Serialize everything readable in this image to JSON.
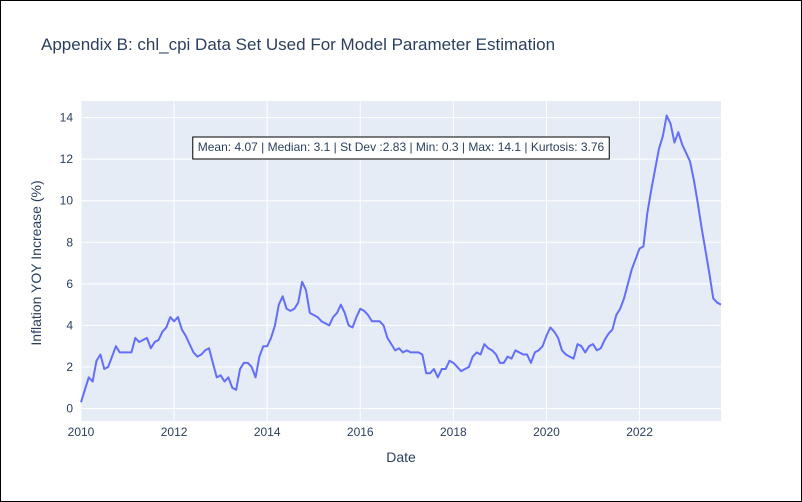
{
  "chart_title": "Appendix B: chl_cpi Data Set Used For Model Parameter Estimation",
  "chart_data": {
    "type": "line",
    "title": "Appendix B: chl_cpi Data Set Used For Model Parameter Estimation",
    "xlabel": "Date",
    "ylabel": "Inflation YOY Increase (%)",
    "xlim": [
      2010.0,
      2023.75
    ],
    "ylim": [
      -0.6,
      14.8
    ],
    "x_ticks": [
      "2010",
      "2012",
      "2014",
      "2016",
      "2018",
      "2020",
      "2022"
    ],
    "y_ticks": [
      "0",
      "2",
      "4",
      "6",
      "8",
      "10",
      "12",
      "14"
    ],
    "annotation": "Mean: 4.07 | Median: 3.1 | St Dev :2.83 | Min: 0.3 | Max: 14.1 | Kurtosis: 3.76",
    "grid": true,
    "line_color": "#636efa",
    "series": [
      {
        "x": [
          2010.0,
          2010.083,
          2010.167,
          2010.25,
          2010.333,
          2010.417,
          2010.5,
          2010.583,
          2010.667,
          2010.75,
          2010.833,
          2010.917,
          2011.0,
          2011.083,
          2011.167,
          2011.25,
          2011.333,
          2011.417,
          2011.5,
          2011.583,
          2011.667,
          2011.75,
          2011.833,
          2011.917,
          2012.0,
          2012.083,
          2012.167,
          2012.25,
          2012.333,
          2012.417,
          2012.5,
          2012.583,
          2012.667,
          2012.75,
          2012.833,
          2012.917,
          2013.0,
          2013.083,
          2013.167,
          2013.25,
          2013.333,
          2013.417,
          2013.5,
          2013.583,
          2013.667,
          2013.75,
          2013.833,
          2013.917,
          2014.0,
          2014.083,
          2014.167,
          2014.25,
          2014.333,
          2014.417,
          2014.5,
          2014.583,
          2014.667,
          2014.75,
          2014.833,
          2014.917,
          2015.0,
          2015.083,
          2015.167,
          2015.25,
          2015.333,
          2015.417,
          2015.5,
          2015.583,
          2015.667,
          2015.75,
          2015.833,
          2015.917,
          2016.0,
          2016.083,
          2016.167,
          2016.25,
          2016.333,
          2016.417,
          2016.5,
          2016.583,
          2016.667,
          2016.75,
          2016.833,
          2016.917,
          2017.0,
          2017.083,
          2017.167,
          2017.25,
          2017.333,
          2017.417,
          2017.5,
          2017.583,
          2017.667,
          2017.75,
          2017.833,
          2017.917,
          2018.0,
          2018.083,
          2018.167,
          2018.25,
          2018.333,
          2018.417,
          2018.5,
          2018.583,
          2018.667,
          2018.75,
          2018.833,
          2018.917,
          2019.0,
          2019.083,
          2019.167,
          2019.25,
          2019.333,
          2019.417,
          2019.5,
          2019.583,
          2019.667,
          2019.75,
          2019.833,
          2019.917,
          2020.0,
          2020.083,
          2020.167,
          2020.25,
          2020.333,
          2020.417,
          2020.5,
          2020.583,
          2020.667,
          2020.75,
          2020.833,
          2020.917,
          2021.0,
          2021.083,
          2021.167,
          2021.25,
          2021.333,
          2021.417,
          2021.5,
          2021.583,
          2021.667,
          2021.75,
          2021.833,
          2021.917,
          2022.0,
          2022.083,
          2022.167,
          2022.25,
          2022.333,
          2022.417,
          2022.5,
          2022.583,
          2022.667,
          2022.75,
          2022.833,
          2022.917,
          2023.0,
          2023.083,
          2023.167,
          2023.25,
          2023.333,
          2023.417,
          2023.5,
          2023.583,
          2023.667,
          2023.75
        ],
        "y": [
          0.3,
          0.9,
          1.5,
          1.3,
          2.3,
          2.6,
          1.9,
          2.0,
          2.5,
          3.0,
          2.7,
          2.7,
          2.7,
          2.7,
          3.4,
          3.2,
          3.3,
          3.4,
          2.9,
          3.2,
          3.3,
          3.7,
          3.9,
          4.4,
          4.2,
          4.4,
          3.8,
          3.5,
          3.1,
          2.7,
          2.5,
          2.6,
          2.8,
          2.9,
          2.2,
          1.5,
          1.6,
          1.3,
          1.5,
          1.0,
          0.9,
          1.9,
          2.2,
          2.2,
          2.0,
          1.5,
          2.5,
          3.0,
          3.0,
          3.4,
          4.0,
          5.0,
          5.4,
          4.8,
          4.7,
          4.8,
          5.1,
          6.1,
          5.7,
          4.6,
          4.5,
          4.4,
          4.2,
          4.1,
          4.0,
          4.4,
          4.6,
          5.0,
          4.6,
          4.0,
          3.9,
          4.4,
          4.8,
          4.7,
          4.5,
          4.2,
          4.2,
          4.2,
          4.0,
          3.4,
          3.1,
          2.8,
          2.9,
          2.7,
          2.8,
          2.7,
          2.7,
          2.7,
          2.6,
          1.7,
          1.7,
          1.9,
          1.5,
          1.9,
          1.9,
          2.3,
          2.2,
          2.0,
          1.8,
          1.9,
          2.0,
          2.5,
          2.7,
          2.6,
          3.1,
          2.9,
          2.8,
          2.6,
          2.2,
          2.2,
          2.5,
          2.4,
          2.8,
          2.7,
          2.6,
          2.6,
          2.2,
          2.7,
          2.8,
          3.0,
          3.5,
          3.9,
          3.7,
          3.4,
          2.8,
          2.6,
          2.5,
          2.4,
          3.1,
          3.0,
          2.7,
          3.0,
          3.1,
          2.8,
          2.9,
          3.3,
          3.6,
          3.8,
          4.5,
          4.8,
          5.3,
          6.0,
          6.7,
          7.2,
          7.7,
          7.8,
          9.4,
          10.5,
          11.5,
          12.5,
          13.1,
          14.1,
          13.7,
          12.8,
          13.3,
          12.7,
          12.3,
          11.9,
          11.0,
          9.9,
          8.7,
          7.6,
          6.5,
          5.3,
          5.1,
          5.0
        ]
      }
    ]
  }
}
